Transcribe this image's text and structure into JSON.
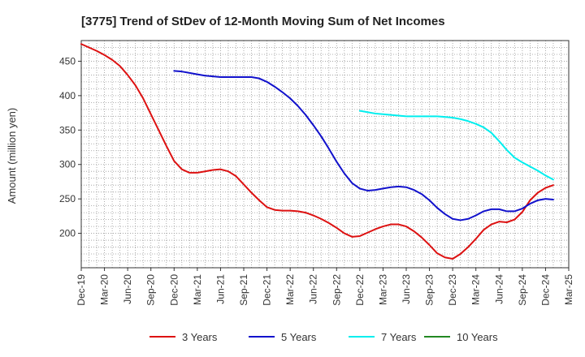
{
  "chart_data": {
    "type": "line",
    "title": "[3775]  Trend of StDev of 12-Month Moving Sum of Net Incomes",
    "ylabel": "Amount (million yen)",
    "xlabel": "",
    "ylim": [
      150,
      480
    ],
    "yticks": [
      200,
      250,
      300,
      350,
      400,
      450
    ],
    "xticks": [
      "Dec-19",
      "Mar-20",
      "Jun-20",
      "Sep-20",
      "Dec-20",
      "Mar-21",
      "Jun-21",
      "Sep-21",
      "Dec-21",
      "Mar-22",
      "Jun-22",
      "Sep-22",
      "Dec-22",
      "Mar-23",
      "Jun-23",
      "Sep-23",
      "Dec-23",
      "Mar-24",
      "Jun-24",
      "Sep-24",
      "Dec-24",
      "Mar-25"
    ],
    "grid": true,
    "legend_position": "bottom",
    "series": [
      {
        "name": "3 Years",
        "color": "#dd1111",
        "points": [
          [
            "Dec-19",
            475
          ],
          [
            "Jan-20",
            470
          ],
          [
            "Feb-20",
            465
          ],
          [
            "Mar-20",
            459
          ],
          [
            "Apr-20",
            452
          ],
          [
            "May-20",
            443
          ],
          [
            "Jun-20",
            430
          ],
          [
            "Jul-20",
            415
          ],
          [
            "Aug-20",
            396
          ],
          [
            "Sep-20",
            373
          ],
          [
            "Oct-20",
            350
          ],
          [
            "Nov-20",
            327
          ],
          [
            "Dec-20",
            305
          ],
          [
            "Jan-21",
            293
          ],
          [
            "Feb-21",
            288
          ],
          [
            "Mar-21",
            288
          ],
          [
            "Apr-21",
            290
          ],
          [
            "May-21",
            292
          ],
          [
            "Jun-21",
            293
          ],
          [
            "Jul-21",
            290
          ],
          [
            "Aug-21",
            283
          ],
          [
            "Sep-21",
            271
          ],
          [
            "Oct-21",
            259
          ],
          [
            "Nov-21",
            248
          ],
          [
            "Dec-21",
            238
          ],
          [
            "Jan-22",
            234
          ],
          [
            "Feb-22",
            233
          ],
          [
            "Mar-22",
            233
          ],
          [
            "Apr-22",
            232
          ],
          [
            "May-22",
            230
          ],
          [
            "Jun-22",
            226
          ],
          [
            "Jul-22",
            221
          ],
          [
            "Aug-22",
            215
          ],
          [
            "Sep-22",
            208
          ],
          [
            "Oct-22",
            200
          ],
          [
            "Nov-22",
            195
          ],
          [
            "Dec-22",
            196
          ],
          [
            "Jan-23",
            201
          ],
          [
            "Feb-23",
            206
          ],
          [
            "Mar-23",
            210
          ],
          [
            "Apr-23",
            213
          ],
          [
            "May-23",
            213
          ],
          [
            "Jun-23",
            210
          ],
          [
            "Jul-23",
            203
          ],
          [
            "Aug-23",
            194
          ],
          [
            "Sep-23",
            183
          ],
          [
            "Oct-23",
            171
          ],
          [
            "Nov-23",
            165
          ],
          [
            "Dec-23",
            163
          ],
          [
            "Jan-24",
            170
          ],
          [
            "Feb-24",
            180
          ],
          [
            "Mar-24",
            192
          ],
          [
            "Apr-24",
            205
          ],
          [
            "May-24",
            213
          ],
          [
            "Jun-24",
            217
          ],
          [
            "Jul-24",
            216
          ],
          [
            "Aug-24",
            220
          ],
          [
            "Sep-24",
            231
          ],
          [
            "Oct-24",
            248
          ],
          [
            "Nov-24",
            259
          ],
          [
            "Dec-24",
            266
          ],
          [
            "Jan-25",
            270
          ]
        ]
      },
      {
        "name": "5 Years",
        "color": "#1111cc",
        "points": [
          [
            "Dec-20",
            436
          ],
          [
            "Jan-21",
            435
          ],
          [
            "Feb-21",
            433
          ],
          [
            "Mar-21",
            431
          ],
          [
            "Apr-21",
            429
          ],
          [
            "May-21",
            428
          ],
          [
            "Jun-21",
            427
          ],
          [
            "Jul-21",
            427
          ],
          [
            "Aug-21",
            427
          ],
          [
            "Sep-21",
            427
          ],
          [
            "Oct-21",
            427
          ],
          [
            "Nov-21",
            425
          ],
          [
            "Dec-21",
            420
          ],
          [
            "Jan-22",
            413
          ],
          [
            "Feb-22",
            405
          ],
          [
            "Mar-22",
            396
          ],
          [
            "Apr-22",
            385
          ],
          [
            "May-22",
            372
          ],
          [
            "Jun-22",
            357
          ],
          [
            "Jul-22",
            341
          ],
          [
            "Aug-22",
            323
          ],
          [
            "Sep-22",
            304
          ],
          [
            "Oct-22",
            287
          ],
          [
            "Nov-22",
            273
          ],
          [
            "Dec-22",
            265
          ],
          [
            "Jan-23",
            262
          ],
          [
            "Feb-23",
            263
          ],
          [
            "Mar-23",
            265
          ],
          [
            "Apr-23",
            267
          ],
          [
            "May-23",
            268
          ],
          [
            "Jun-23",
            267
          ],
          [
            "Jul-23",
            263
          ],
          [
            "Aug-23",
            257
          ],
          [
            "Sep-23",
            248
          ],
          [
            "Oct-23",
            237
          ],
          [
            "Nov-23",
            228
          ],
          [
            "Dec-23",
            221
          ],
          [
            "Jan-24",
            219
          ],
          [
            "Feb-24",
            221
          ],
          [
            "Mar-24",
            226
          ],
          [
            "Apr-24",
            232
          ],
          [
            "May-24",
            235
          ],
          [
            "Jun-24",
            235
          ],
          [
            "Jul-24",
            232
          ],
          [
            "Aug-24",
            232
          ],
          [
            "Sep-24",
            236
          ],
          [
            "Oct-24",
            243
          ],
          [
            "Nov-24",
            248
          ],
          [
            "Dec-24",
            250
          ],
          [
            "Jan-25",
            249
          ]
        ]
      },
      {
        "name": "7 Years",
        "color": "#00eeee",
        "points": [
          [
            "Dec-22",
            378
          ],
          [
            "Jan-23",
            376
          ],
          [
            "Feb-23",
            374
          ],
          [
            "Mar-23",
            373
          ],
          [
            "Apr-23",
            372
          ],
          [
            "May-23",
            371
          ],
          [
            "Jun-23",
            370
          ],
          [
            "Jul-23",
            370
          ],
          [
            "Aug-23",
            370
          ],
          [
            "Sep-23",
            370
          ],
          [
            "Oct-23",
            370
          ],
          [
            "Nov-23",
            369
          ],
          [
            "Dec-23",
            368
          ],
          [
            "Jan-24",
            366
          ],
          [
            "Feb-24",
            363
          ],
          [
            "Mar-24",
            359
          ],
          [
            "Apr-24",
            354
          ],
          [
            "May-24",
            346
          ],
          [
            "Jun-24",
            334
          ],
          [
            "Jul-24",
            321
          ],
          [
            "Aug-24",
            310
          ],
          [
            "Sep-24",
            303
          ],
          [
            "Oct-24",
            297
          ],
          [
            "Nov-24",
            291
          ],
          [
            "Dec-24",
            284
          ],
          [
            "Jan-25",
            278
          ]
        ]
      },
      {
        "name": "10 Years",
        "color": "#228822",
        "points": []
      }
    ]
  }
}
